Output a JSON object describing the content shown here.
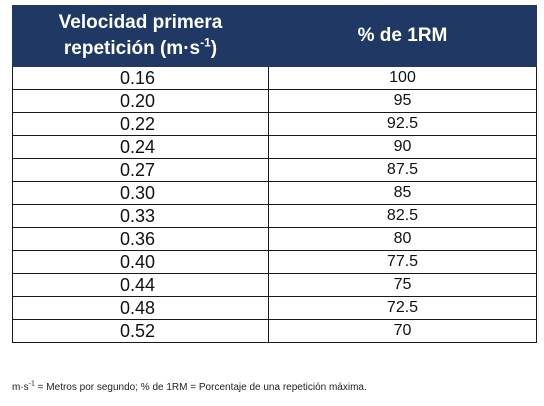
{
  "table": {
    "header": {
      "col1_line1": "Velocidad primera",
      "col1_line2": "repetición (m·s",
      "col1_sup": "-1",
      "col1_close": ")",
      "col2": "% de 1RM"
    },
    "rows": [
      {
        "velocity": "0.16",
        "percent": "100"
      },
      {
        "velocity": "0.20",
        "percent": "95"
      },
      {
        "velocity": "0.22",
        "percent": "92.5"
      },
      {
        "velocity": "0.24",
        "percent": "90"
      },
      {
        "velocity": "0.27",
        "percent": "87.5"
      },
      {
        "velocity": "0.30",
        "percent": "85"
      },
      {
        "velocity": "0.33",
        "percent": "82.5"
      },
      {
        "velocity": "0.36",
        "percent": "80"
      },
      {
        "velocity": "0.40",
        "percent": "77.5"
      },
      {
        "velocity": "0.44",
        "percent": "75"
      },
      {
        "velocity": "0.48",
        "percent": "72.5"
      },
      {
        "velocity": "0.52",
        "percent": "70"
      }
    ]
  },
  "footnote": {
    "unit_base": "m·s",
    "unit_sup": "-1",
    "text": " = Metros por segundo; % de 1RM = Porcentaje de una repetición máxima."
  },
  "colors": {
    "header_bg": "#1f3864",
    "header_text": "#ffffff",
    "border": "#1a1a1a"
  }
}
